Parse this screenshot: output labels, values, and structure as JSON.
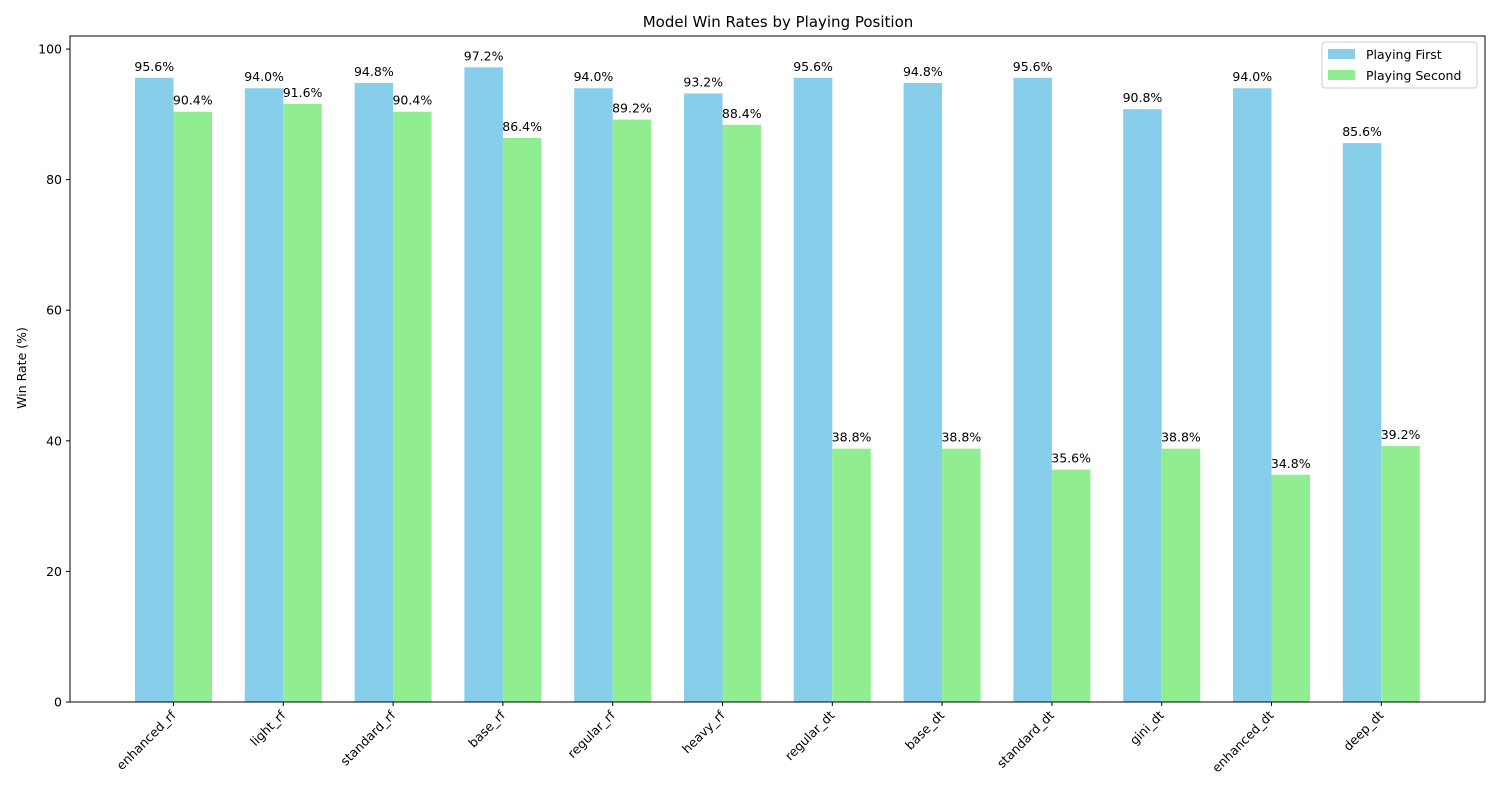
{
  "chart_data": {
    "type": "bar",
    "title": "Model Win Rates by Playing Position",
    "xlabel": "",
    "ylabel": "Win Rate (%)",
    "ylim": [
      0,
      102
    ],
    "yticks": [
      0,
      20,
      40,
      60,
      80,
      100
    ],
    "categories": [
      "enhanced_rf",
      "light_rf",
      "standard_rf",
      "base_rf",
      "regular_rf",
      "heavy_rf",
      "regular_dt",
      "base_dt",
      "standard_dt",
      "gini_dt",
      "enhanced_dt",
      "deep_dt"
    ],
    "series": [
      {
        "name": "Playing First",
        "color": "#87ceeb",
        "values": [
          95.6,
          94.0,
          94.8,
          97.2,
          94.0,
          93.2,
          95.6,
          94.8,
          95.6,
          90.8,
          94.0,
          85.6
        ],
        "labels": [
          "95.6%",
          "94.0%",
          "94.8%",
          "97.2%",
          "94.0%",
          "93.2%",
          "95.6%",
          "94.8%",
          "95.6%",
          "90.8%",
          "94.0%",
          "85.6%"
        ]
      },
      {
        "name": "Playing Second",
        "color": "#90ee90",
        "values": [
          90.4,
          91.6,
          90.4,
          86.4,
          89.2,
          88.4,
          38.8,
          38.8,
          35.6,
          38.8,
          34.8,
          39.2
        ],
        "labels": [
          "90.4%",
          "91.6%",
          "90.4%",
          "86.4%",
          "89.2%",
          "88.4%",
          "38.8%",
          "38.8%",
          "35.6%",
          "38.8%",
          "34.8%",
          "39.2%"
        ]
      }
    ],
    "legend": "top-right",
    "grid": false
  }
}
